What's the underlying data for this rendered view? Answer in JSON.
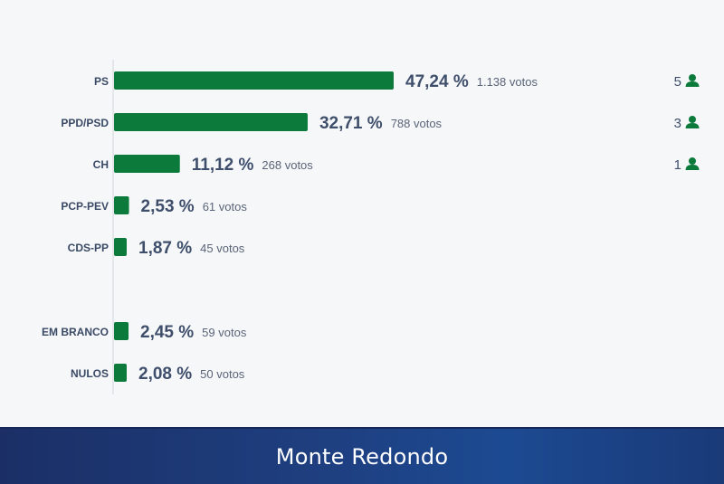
{
  "chart_data": {
    "type": "bar",
    "orientation": "horizontal",
    "title": "",
    "categories": [
      "PS",
      "PPD/PSD",
      "CH",
      "PCP-PEV",
      "CDS-PP",
      "EM BRANCO",
      "NULOS"
    ],
    "values": [
      47.24,
      32.71,
      11.12,
      2.53,
      1.87,
      2.45,
      2.08
    ],
    "value_labels": [
      "47,24 %",
      "32,71 %",
      "11,12 %",
      "2,53 %",
      "1,87 %",
      "2,45 %",
      "2,08 %"
    ],
    "votes": [
      "1.138 votos",
      "788 votos",
      "268 votos",
      "61 votos",
      "45 votos",
      "59 votos",
      "50 votos"
    ],
    "seats": [
      "5",
      "3",
      "1",
      "",
      "",
      "",
      ""
    ],
    "seat_icon": "person-icon",
    "bar_color": "#0b7a3b",
    "grid": false,
    "legend": "none"
  },
  "footer": {
    "title": "Monte Redondo"
  },
  "colors": {
    "label_text": "#3a4a66",
    "value_text": "#3e4e6b",
    "votes_text": "#5a6478",
    "footer_bg": "#1e3f80"
  }
}
